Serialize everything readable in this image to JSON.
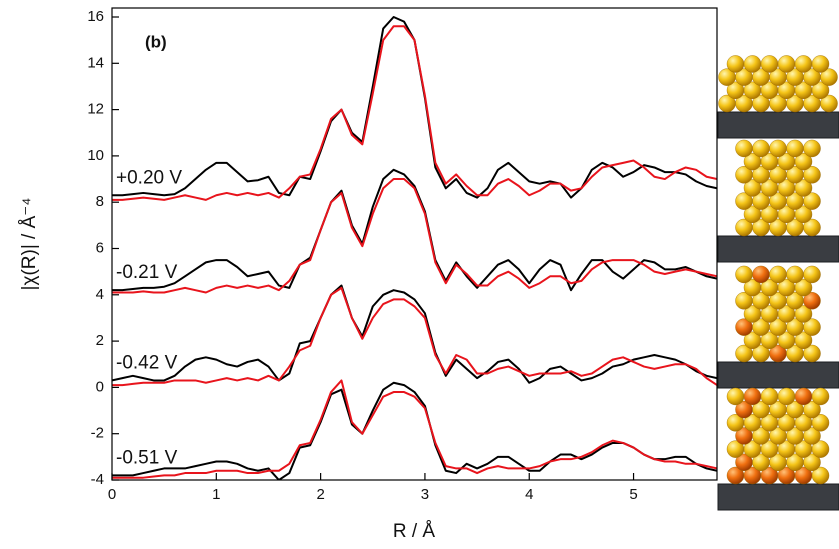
{
  "chart_data": {
    "type": "line",
    "panel_label": "(b)",
    "x_label": "R / Å",
    "y_label": "|χ(R)| / Å⁻⁴",
    "xlim": [
      0,
      5.8
    ],
    "ylim": [
      -4,
      16
    ],
    "xticks": [
      0,
      1,
      2,
      3,
      4,
      5
    ],
    "yticks": [
      -4,
      -2,
      0,
      2,
      4,
      6,
      8,
      10,
      12,
      14,
      16
    ],
    "x": [
      0,
      0.1,
      0.2,
      0.3,
      0.4,
      0.5,
      0.6,
      0.7,
      0.8,
      0.9,
      1,
      1.1,
      1.2,
      1.3,
      1.4,
      1.5,
      1.6,
      1.7,
      1.8,
      1.9,
      2,
      2.1,
      2.2,
      2.3,
      2.4,
      2.5,
      2.6,
      2.7,
      2.8,
      2.9,
      3,
      3.1,
      3.2,
      3.3,
      3.4,
      3.5,
      3.6,
      3.7,
      3.8,
      3.9,
      4,
      4.1,
      4.2,
      4.3,
      4.4,
      4.5,
      4.6,
      4.7,
      4.8,
      4.9,
      5,
      5.1,
      5.2,
      5.3,
      5.4,
      5.5,
      5.6,
      5.7,
      5.8
    ],
    "series": [
      {
        "name": "+0.20 V",
        "color": "#000000",
        "values": [
          8.3,
          8.3,
          8.35,
          8.4,
          8.35,
          8.3,
          8.35,
          8.6,
          9.0,
          9.4,
          9.7,
          9.7,
          9.3,
          8.9,
          8.95,
          9.1,
          8.4,
          8.3,
          9.1,
          9.0,
          10.2,
          11.5,
          12.0,
          11.0,
          10.6,
          13.0,
          15.5,
          16.0,
          15.8,
          15.0,
          12.5,
          9.5,
          8.6,
          9.0,
          8.4,
          8.2,
          8.6,
          9.4,
          9.7,
          9.3,
          8.9,
          8.8,
          8.9,
          8.8,
          8.2,
          8.6,
          9.4,
          9.7,
          9.5,
          9.1,
          9.3,
          9.6,
          9.5,
          9.3,
          9.3,
          9.2,
          8.9,
          8.7,
          8.6
        ]
      },
      {
        "color": "#e8141c",
        "values": [
          8.1,
          8.1,
          8.15,
          8.2,
          8.15,
          8.1,
          8.2,
          8.3,
          8.2,
          8.1,
          8.3,
          8.4,
          8.3,
          8.4,
          8.3,
          8.4,
          8.2,
          8.6,
          9.1,
          9.2,
          10.3,
          11.6,
          12.0,
          10.9,
          10.5,
          12.7,
          15.0,
          15.6,
          15.6,
          15.0,
          12.6,
          9.7,
          8.8,
          9.2,
          8.7,
          8.3,
          8.3,
          8.8,
          9.0,
          8.7,
          8.3,
          8.5,
          8.8,
          8.8,
          8.5,
          8.6,
          9.1,
          9.5,
          9.6,
          9.7,
          9.8,
          9.5,
          9.1,
          9.0,
          9.3,
          9.5,
          9.4,
          9.1,
          9.0
        ]
      },
      {
        "name": "-0.21 V",
        "color": "#000000",
        "values": [
          4.2,
          4.2,
          4.25,
          4.3,
          4.3,
          4.35,
          4.5,
          4.8,
          5.1,
          5.4,
          5.5,
          5.5,
          5.2,
          4.8,
          4.9,
          5.0,
          4.4,
          4.3,
          5.3,
          5.6,
          6.8,
          8.0,
          8.5,
          7.0,
          6.2,
          7.8,
          9.0,
          9.4,
          9.2,
          8.7,
          7.6,
          5.5,
          4.6,
          5.4,
          4.8,
          4.3,
          4.8,
          5.3,
          5.5,
          5.1,
          4.5,
          5.1,
          5.5,
          5.3,
          4.2,
          4.9,
          5.5,
          5.5,
          5.0,
          4.7,
          5.1,
          5.5,
          5.4,
          5.1,
          5.1,
          5.2,
          5.0,
          4.8,
          4.7
        ]
      },
      {
        "color": "#e8141c",
        "values": [
          4.1,
          4.1,
          4.1,
          4.15,
          4.1,
          4.1,
          4.2,
          4.3,
          4.2,
          4.1,
          4.3,
          4.4,
          4.3,
          4.4,
          4.3,
          4.4,
          4.2,
          4.6,
          5.3,
          5.5,
          6.8,
          8.0,
          8.4,
          6.9,
          6.1,
          7.5,
          8.6,
          9.0,
          9.0,
          8.6,
          7.5,
          5.4,
          4.5,
          5.3,
          4.9,
          4.4,
          4.4,
          4.8,
          5.0,
          4.7,
          4.3,
          4.5,
          4.8,
          4.8,
          4.5,
          4.6,
          5.1,
          5.4,
          5.5,
          5.5,
          5.5,
          5.3,
          5.0,
          4.9,
          5.0,
          5.1,
          5.0,
          4.9,
          4.8
        ]
      },
      {
        "name": "-0.42 V",
        "color": "#000000",
        "values": [
          0.3,
          0.4,
          0.5,
          0.4,
          0.3,
          0.3,
          0.5,
          0.9,
          1.2,
          1.3,
          1.2,
          1.0,
          0.9,
          1.1,
          1.2,
          0.9,
          0.3,
          0.6,
          1.9,
          2.0,
          3.0,
          4.0,
          4.4,
          3.0,
          2.2,
          3.5,
          4.0,
          4.2,
          4.1,
          3.8,
          3.2,
          1.5,
          0.5,
          1.2,
          0.8,
          0.4,
          0.7,
          1.1,
          1.2,
          0.8,
          0.2,
          0.4,
          0.8,
          0.9,
          0.6,
          0.3,
          0.4,
          0.6,
          0.9,
          1.0,
          1.2,
          1.3,
          1.4,
          1.3,
          1.2,
          1.0,
          0.7,
          0.5,
          0.4
        ]
      },
      {
        "color": "#e8141c",
        "values": [
          0.1,
          0.1,
          0.15,
          0.2,
          0.2,
          0.2,
          0.3,
          0.3,
          0.3,
          0.2,
          0.3,
          0.4,
          0.3,
          0.4,
          0.3,
          0.5,
          0.3,
          0.9,
          1.6,
          1.8,
          3.0,
          4.0,
          4.3,
          3.0,
          2.1,
          3.0,
          3.6,
          3.8,
          3.8,
          3.5,
          3.0,
          1.4,
          0.6,
          1.4,
          1.2,
          0.6,
          0.6,
          0.8,
          0.9,
          0.7,
          0.5,
          0.6,
          0.6,
          0.6,
          0.7,
          0.5,
          0.6,
          0.9,
          1.2,
          1.3,
          1.1,
          0.9,
          0.8,
          0.9,
          1.0,
          1.0,
          0.8,
          0.4,
          0.1
        ]
      },
      {
        "name": "-0.51 V",
        "color": "#000000",
        "values": [
          -3.8,
          -3.8,
          -3.8,
          -3.7,
          -3.6,
          -3.5,
          -3.5,
          -3.5,
          -3.4,
          -3.3,
          -3.2,
          -3.2,
          -3.3,
          -3.5,
          -3.6,
          -3.5,
          -4.0,
          -3.7,
          -2.6,
          -2.5,
          -1.5,
          -0.3,
          -0.1,
          -1.6,
          -2.0,
          -1.0,
          -0.1,
          0.2,
          0.1,
          -0.2,
          -0.8,
          -2.5,
          -3.6,
          -3.7,
          -3.3,
          -3.5,
          -3.3,
          -3.0,
          -3.0,
          -3.3,
          -3.6,
          -3.6,
          -3.2,
          -2.9,
          -2.9,
          -3.1,
          -2.9,
          -2.6,
          -2.4,
          -2.4,
          -2.6,
          -2.9,
          -3.1,
          -3.1,
          -3.0,
          -3.0,
          -3.3,
          -3.5,
          -3.6
        ]
      },
      {
        "color": "#e8141c",
        "values": [
          -3.9,
          -3.9,
          -3.9,
          -3.9,
          -3.85,
          -3.8,
          -3.8,
          -3.7,
          -3.7,
          -3.7,
          -3.6,
          -3.6,
          -3.6,
          -3.7,
          -3.7,
          -3.6,
          -3.6,
          -3.3,
          -2.5,
          -2.4,
          -1.4,
          -0.2,
          0.3,
          -1.5,
          -2.0,
          -1.2,
          -0.4,
          -0.2,
          -0.2,
          -0.4,
          -0.9,
          -2.4,
          -3.4,
          -3.5,
          -3.5,
          -3.7,
          -3.5,
          -3.4,
          -3.5,
          -3.5,
          -3.5,
          -3.4,
          -3.2,
          -3.1,
          -3.1,
          -3.0,
          -2.8,
          -2.5,
          -2.3,
          -2.4,
          -2.6,
          -2.9,
          -3.1,
          -3.2,
          -3.2,
          -3.3,
          -3.3,
          -3.4,
          -3.5
        ]
      }
    ]
  }
}
